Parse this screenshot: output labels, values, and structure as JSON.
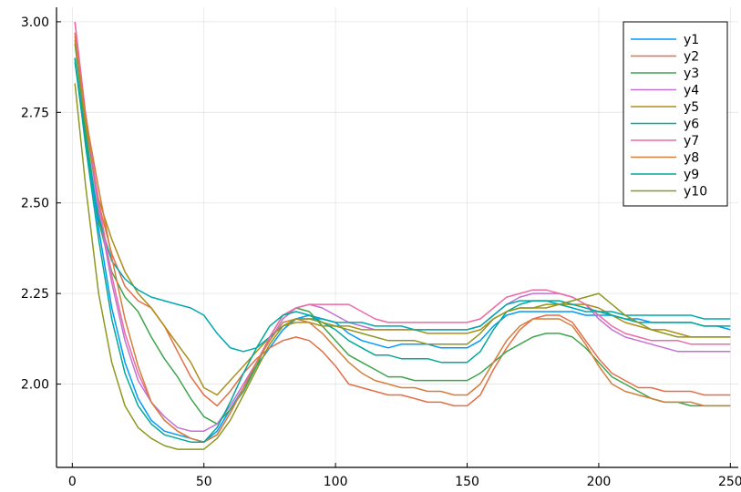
{
  "chart_data": {
    "type": "line",
    "title": "",
    "xlabel": "",
    "ylabel": "",
    "xlim": [
      -6,
      253
    ],
    "ylim": [
      1.77,
      3.04
    ],
    "x_ticks": [
      0,
      50,
      100,
      150,
      200,
      250
    ],
    "x_tick_labels": [
      "0",
      "50",
      "100",
      "150",
      "200",
      "250"
    ],
    "y_ticks": [
      2.0,
      2.25,
      2.5,
      2.75,
      3.0
    ],
    "y_tick_labels": [
      "2.00",
      "2.25",
      "2.50",
      "2.75",
      "3.00"
    ],
    "grid": true,
    "legend_position": "top-right",
    "x": [
      1,
      5,
      10,
      15,
      20,
      25,
      30,
      35,
      40,
      45,
      50,
      55,
      60,
      65,
      70,
      75,
      80,
      85,
      90,
      95,
      100,
      105,
      110,
      115,
      120,
      125,
      130,
      135,
      140,
      145,
      150,
      155,
      160,
      165,
      170,
      175,
      180,
      185,
      190,
      195,
      200,
      205,
      210,
      215,
      220,
      225,
      230,
      235,
      240,
      245,
      250
    ],
    "series": [
      {
        "name": "y1",
        "color": "#009AFA",
        "values": [
          2.9,
          2.68,
          2.43,
          2.21,
          2.06,
          1.96,
          1.9,
          1.87,
          1.86,
          1.85,
          1.84,
          1.87,
          1.93,
          1.99,
          2.05,
          2.1,
          2.15,
          2.18,
          2.19,
          2.18,
          2.17,
          2.14,
          2.12,
          2.11,
          2.1,
          2.11,
          2.11,
          2.11,
          2.1,
          2.1,
          2.1,
          2.12,
          2.16,
          2.19,
          2.2,
          2.2,
          2.2,
          2.2,
          2.2,
          2.19,
          2.19,
          2.19,
          2.18,
          2.18,
          2.17,
          2.17,
          2.17,
          2.17,
          2.16,
          2.16,
          2.15
        ]
      },
      {
        "name": "y2",
        "color": "#E36F47",
        "values": [
          2.97,
          2.72,
          2.5,
          2.36,
          2.27,
          2.23,
          2.21,
          2.16,
          2.09,
          2.02,
          1.97,
          1.94,
          1.98,
          2.03,
          2.07,
          2.1,
          2.12,
          2.13,
          2.12,
          2.09,
          2.05,
          2.0,
          1.99,
          1.98,
          1.97,
          1.97,
          1.96,
          1.95,
          1.95,
          1.94,
          1.94,
          1.97,
          2.04,
          2.1,
          2.15,
          2.18,
          2.19,
          2.19,
          2.17,
          2.12,
          2.07,
          2.03,
          2.01,
          1.99,
          1.99,
          1.98,
          1.98,
          1.98,
          1.97,
          1.97,
          1.97
        ]
      },
      {
        "name": "y3",
        "color": "#3EA44E",
        "values": [
          2.94,
          2.7,
          2.45,
          2.31,
          2.24,
          2.2,
          2.13,
          2.07,
          2.02,
          1.96,
          1.91,
          1.89,
          1.93,
          1.98,
          2.05,
          2.13,
          2.19,
          2.21,
          2.2,
          2.16,
          2.12,
          2.08,
          2.06,
          2.04,
          2.02,
          2.02,
          2.01,
          2.01,
          2.01,
          2.01,
          2.01,
          2.03,
          2.06,
          2.09,
          2.11,
          2.13,
          2.14,
          2.14,
          2.13,
          2.1,
          2.06,
          2.02,
          2.0,
          1.98,
          1.96,
          1.95,
          1.95,
          1.94,
          1.94,
          1.94,
          1.94
        ]
      },
      {
        "name": "y4",
        "color": "#C371D2",
        "values": [
          3.0,
          2.73,
          2.48,
          2.28,
          2.12,
          2.01,
          1.95,
          1.91,
          1.88,
          1.87,
          1.87,
          1.89,
          1.94,
          2.0,
          2.06,
          2.12,
          2.18,
          2.21,
          2.22,
          2.21,
          2.19,
          2.17,
          2.16,
          2.15,
          2.15,
          2.15,
          2.15,
          2.15,
          2.15,
          2.15,
          2.15,
          2.16,
          2.19,
          2.22,
          2.24,
          2.25,
          2.25,
          2.25,
          2.24,
          2.22,
          2.18,
          2.15,
          2.13,
          2.12,
          2.11,
          2.1,
          2.09,
          2.09,
          2.09,
          2.09,
          2.09
        ]
      },
      {
        "name": "y5",
        "color": "#AC8E18",
        "values": [
          2.95,
          2.72,
          2.51,
          2.4,
          2.31,
          2.25,
          2.21,
          2.16,
          2.11,
          2.06,
          1.99,
          1.97,
          2.01,
          2.05,
          2.09,
          2.13,
          2.16,
          2.17,
          2.17,
          2.16,
          2.16,
          2.16,
          2.15,
          2.15,
          2.15,
          2.15,
          2.15,
          2.14,
          2.14,
          2.14,
          2.14,
          2.15,
          2.18,
          2.2,
          2.21,
          2.21,
          2.21,
          2.22,
          2.22,
          2.22,
          2.21,
          2.19,
          2.17,
          2.16,
          2.15,
          2.15,
          2.14,
          2.13,
          2.13,
          2.13,
          2.13
        ]
      },
      {
        "name": "y6",
        "color": "#00A9AD",
        "values": [
          2.89,
          2.67,
          2.46,
          2.34,
          2.29,
          2.26,
          2.24,
          2.23,
          2.22,
          2.21,
          2.19,
          2.14,
          2.1,
          2.09,
          2.1,
          2.13,
          2.16,
          2.18,
          2.18,
          2.18,
          2.17,
          2.17,
          2.17,
          2.16,
          2.16,
          2.16,
          2.15,
          2.15,
          2.15,
          2.15,
          2.15,
          2.16,
          2.19,
          2.22,
          2.23,
          2.23,
          2.23,
          2.22,
          2.21,
          2.2,
          2.2,
          2.2,
          2.19,
          2.19,
          2.19,
          2.19,
          2.19,
          2.19,
          2.18,
          2.18,
          2.18
        ]
      },
      {
        "name": "y7",
        "color": "#EC6BA4",
        "values": [
          3.0,
          2.75,
          2.5,
          2.3,
          2.14,
          2.03,
          1.95,
          1.9,
          1.87,
          1.85,
          1.84,
          1.86,
          1.92,
          1.99,
          2.06,
          2.13,
          2.19,
          2.21,
          2.22,
          2.22,
          2.22,
          2.22,
          2.2,
          2.18,
          2.17,
          2.17,
          2.17,
          2.17,
          2.17,
          2.17,
          2.17,
          2.18,
          2.21,
          2.24,
          2.25,
          2.26,
          2.26,
          2.25,
          2.24,
          2.22,
          2.19,
          2.16,
          2.14,
          2.13,
          2.12,
          2.12,
          2.12,
          2.11,
          2.11,
          2.11,
          2.11
        ]
      },
      {
        "name": "y8",
        "color": "#D47E3C",
        "values": [
          2.96,
          2.74,
          2.54,
          2.35,
          2.18,
          2.05,
          1.95,
          1.9,
          1.87,
          1.85,
          1.84,
          1.86,
          1.92,
          1.99,
          2.06,
          2.12,
          2.17,
          2.18,
          2.17,
          2.14,
          2.1,
          2.06,
          2.03,
          2.01,
          2.0,
          1.99,
          1.99,
          1.98,
          1.98,
          1.97,
          1.97,
          2.0,
          2.06,
          2.12,
          2.16,
          2.18,
          2.18,
          2.18,
          2.16,
          2.11,
          2.05,
          2.0,
          1.98,
          1.97,
          1.96,
          1.95,
          1.95,
          1.95,
          1.94,
          1.94,
          1.94
        ]
      },
      {
        "name": "y9",
        "color": "#00A99A",
        "values": [
          2.9,
          2.66,
          2.4,
          2.18,
          2.03,
          1.94,
          1.89,
          1.86,
          1.85,
          1.84,
          1.84,
          1.88,
          1.95,
          2.03,
          2.1,
          2.16,
          2.19,
          2.2,
          2.19,
          2.17,
          2.15,
          2.12,
          2.1,
          2.08,
          2.08,
          2.07,
          2.07,
          2.07,
          2.06,
          2.06,
          2.06,
          2.09,
          2.15,
          2.2,
          2.22,
          2.23,
          2.23,
          2.23,
          2.22,
          2.21,
          2.2,
          2.19,
          2.18,
          2.17,
          2.17,
          2.17,
          2.17,
          2.17,
          2.16,
          2.16,
          2.16
        ]
      },
      {
        "name": "y10",
        "color": "#8E971E",
        "values": [
          2.83,
          2.55,
          2.25,
          2.06,
          1.94,
          1.88,
          1.85,
          1.83,
          1.82,
          1.82,
          1.82,
          1.85,
          1.9,
          1.97,
          2.04,
          2.11,
          2.16,
          2.18,
          2.18,
          2.17,
          2.16,
          2.15,
          2.14,
          2.13,
          2.12,
          2.12,
          2.12,
          2.11,
          2.11,
          2.11,
          2.11,
          2.14,
          2.18,
          2.2,
          2.21,
          2.21,
          2.22,
          2.22,
          2.23,
          2.24,
          2.25,
          2.22,
          2.19,
          2.17,
          2.15,
          2.14,
          2.13,
          2.13,
          2.13,
          2.13,
          2.13
        ]
      }
    ]
  }
}
